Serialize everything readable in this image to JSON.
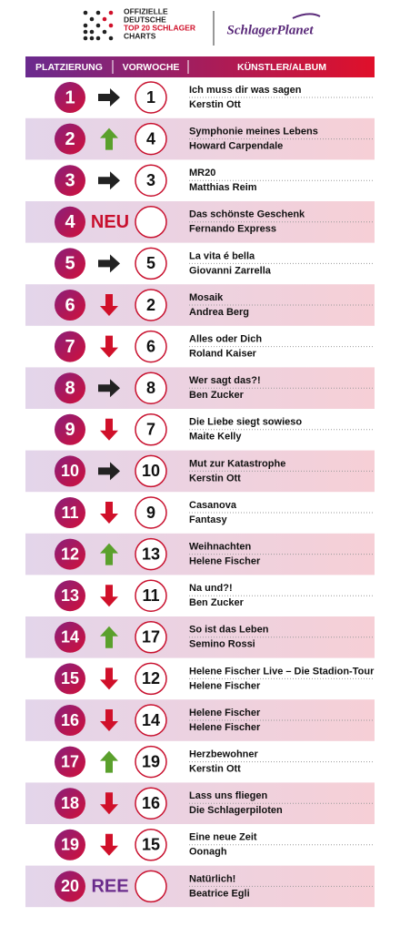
{
  "header": {
    "logo_lines": [
      "OFFIZIELLE",
      "DEUTSCHE",
      "TOP 20 SCHLAGER",
      "CHARTS"
    ],
    "brand": "SchlagerPlanet"
  },
  "columns": [
    "PLATZIERUNG",
    "VORWOCHE",
    "KÜNSTLER/ALBUM"
  ],
  "rows": [
    {
      "rank": 1,
      "previous": 1,
      "title": "Ich muss dir was sagen",
      "artist": "Kerstin Ott"
    },
    {
      "rank": 2,
      "previous": 4,
      "title": "Symphonie meines Lebens",
      "artist": "Howard Carpendale"
    },
    {
      "rank": 3,
      "previous": 3,
      "title": "MR20",
      "artist": "Matthias Reim"
    },
    {
      "rank": 4,
      "previous": null,
      "entry_label": "NEU",
      "entry_color": "#c8102e",
      "title": "Das schönste Geschenk",
      "artist": "Fernando Express"
    },
    {
      "rank": 5,
      "previous": 5,
      "title": "La vita é bella",
      "artist": "Giovanni Zarrella"
    },
    {
      "rank": 6,
      "previous": 2,
      "title": "Mosaik",
      "artist": "Andrea Berg"
    },
    {
      "rank": 7,
      "previous": 6,
      "title": "Alles oder Dich",
      "artist": "Roland Kaiser"
    },
    {
      "rank": 8,
      "previous": 8,
      "title": "Wer sagt das?!",
      "artist": "Ben Zucker"
    },
    {
      "rank": 9,
      "previous": 7,
      "title": "Die Liebe siegt sowieso",
      "artist": "Maite Kelly"
    },
    {
      "rank": 10,
      "previous": 10,
      "title": "Mut zur Katastrophe",
      "artist": "Kerstin Ott"
    },
    {
      "rank": 11,
      "previous": 9,
      "title": "Casanova",
      "artist": "Fantasy"
    },
    {
      "rank": 12,
      "previous": 13,
      "title": "Weihnachten",
      "artist": "Helene Fischer"
    },
    {
      "rank": 13,
      "previous": 11,
      "title": "Na und?!",
      "artist": "Ben Zucker"
    },
    {
      "rank": 14,
      "previous": 17,
      "title": "So ist das Leben",
      "artist": "Semino Rossi"
    },
    {
      "rank": 15,
      "previous": 12,
      "title": "Helene Fischer Live – Die Stadion-Tour",
      "artist": "Helene Fischer"
    },
    {
      "rank": 16,
      "previous": 14,
      "title": "Helene Fischer",
      "artist": "Helene Fischer"
    },
    {
      "rank": 17,
      "previous": 19,
      "title": "Herzbewohner",
      "artist": "Kerstin Ott"
    },
    {
      "rank": 18,
      "previous": 16,
      "title": "Lass uns fliegen",
      "artist": "Die Schlagerpiloten"
    },
    {
      "rank": 19,
      "previous": 15,
      "title": "Eine neue Zeit",
      "artist": "Oonagh"
    },
    {
      "rank": 20,
      "previous": null,
      "entry_label": "REE",
      "entry_color": "#6a2c8c",
      "title": "Natürlich!",
      "artist": "Beatrice Egli"
    }
  ]
}
